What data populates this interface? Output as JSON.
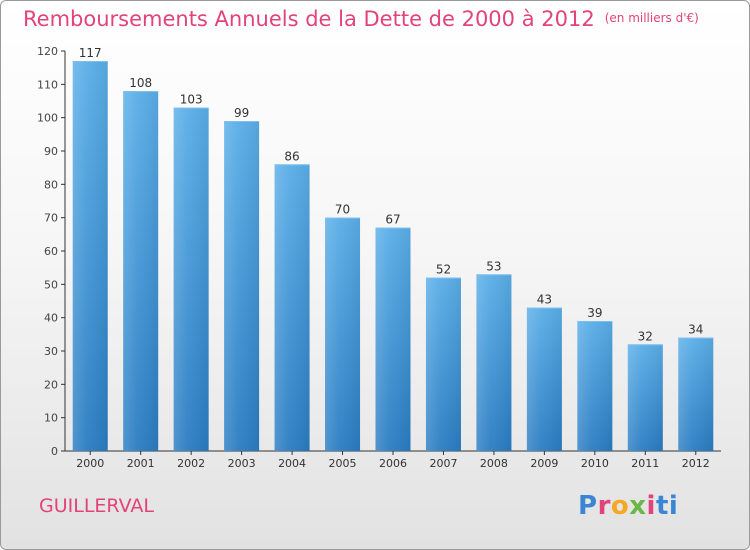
{
  "header": {
    "title": "Remboursements Annuels de la Dette de 2000 à 2012",
    "unit": "(en milliers d'€)"
  },
  "footer": {
    "city": "GUILLERVAL",
    "logo_text": "Proxiti"
  },
  "colors": {
    "title": "#e2437a",
    "bar_top": "#5aaee8",
    "bar_bottom": "#2a7cc2",
    "axis": "#333333"
  },
  "chart_data": {
    "type": "bar",
    "title": "Remboursements Annuels de la Dette de 2000 à 2012",
    "subtitle": "(en milliers d'€)",
    "xlabel": "",
    "ylabel": "",
    "categories": [
      "2000",
      "2001",
      "2002",
      "2003",
      "2004",
      "2005",
      "2006",
      "2007",
      "2008",
      "2009",
      "2010",
      "2011",
      "2012"
    ],
    "values": [
      117,
      108,
      103,
      99,
      86,
      70,
      67,
      52,
      53,
      43,
      39,
      32,
      34
    ],
    "ylim": [
      0,
      120
    ],
    "yticks": [
      0,
      10,
      20,
      30,
      40,
      50,
      60,
      70,
      80,
      90,
      100,
      110,
      120
    ],
    "data_labels": true,
    "grid": false,
    "legend": "none"
  }
}
